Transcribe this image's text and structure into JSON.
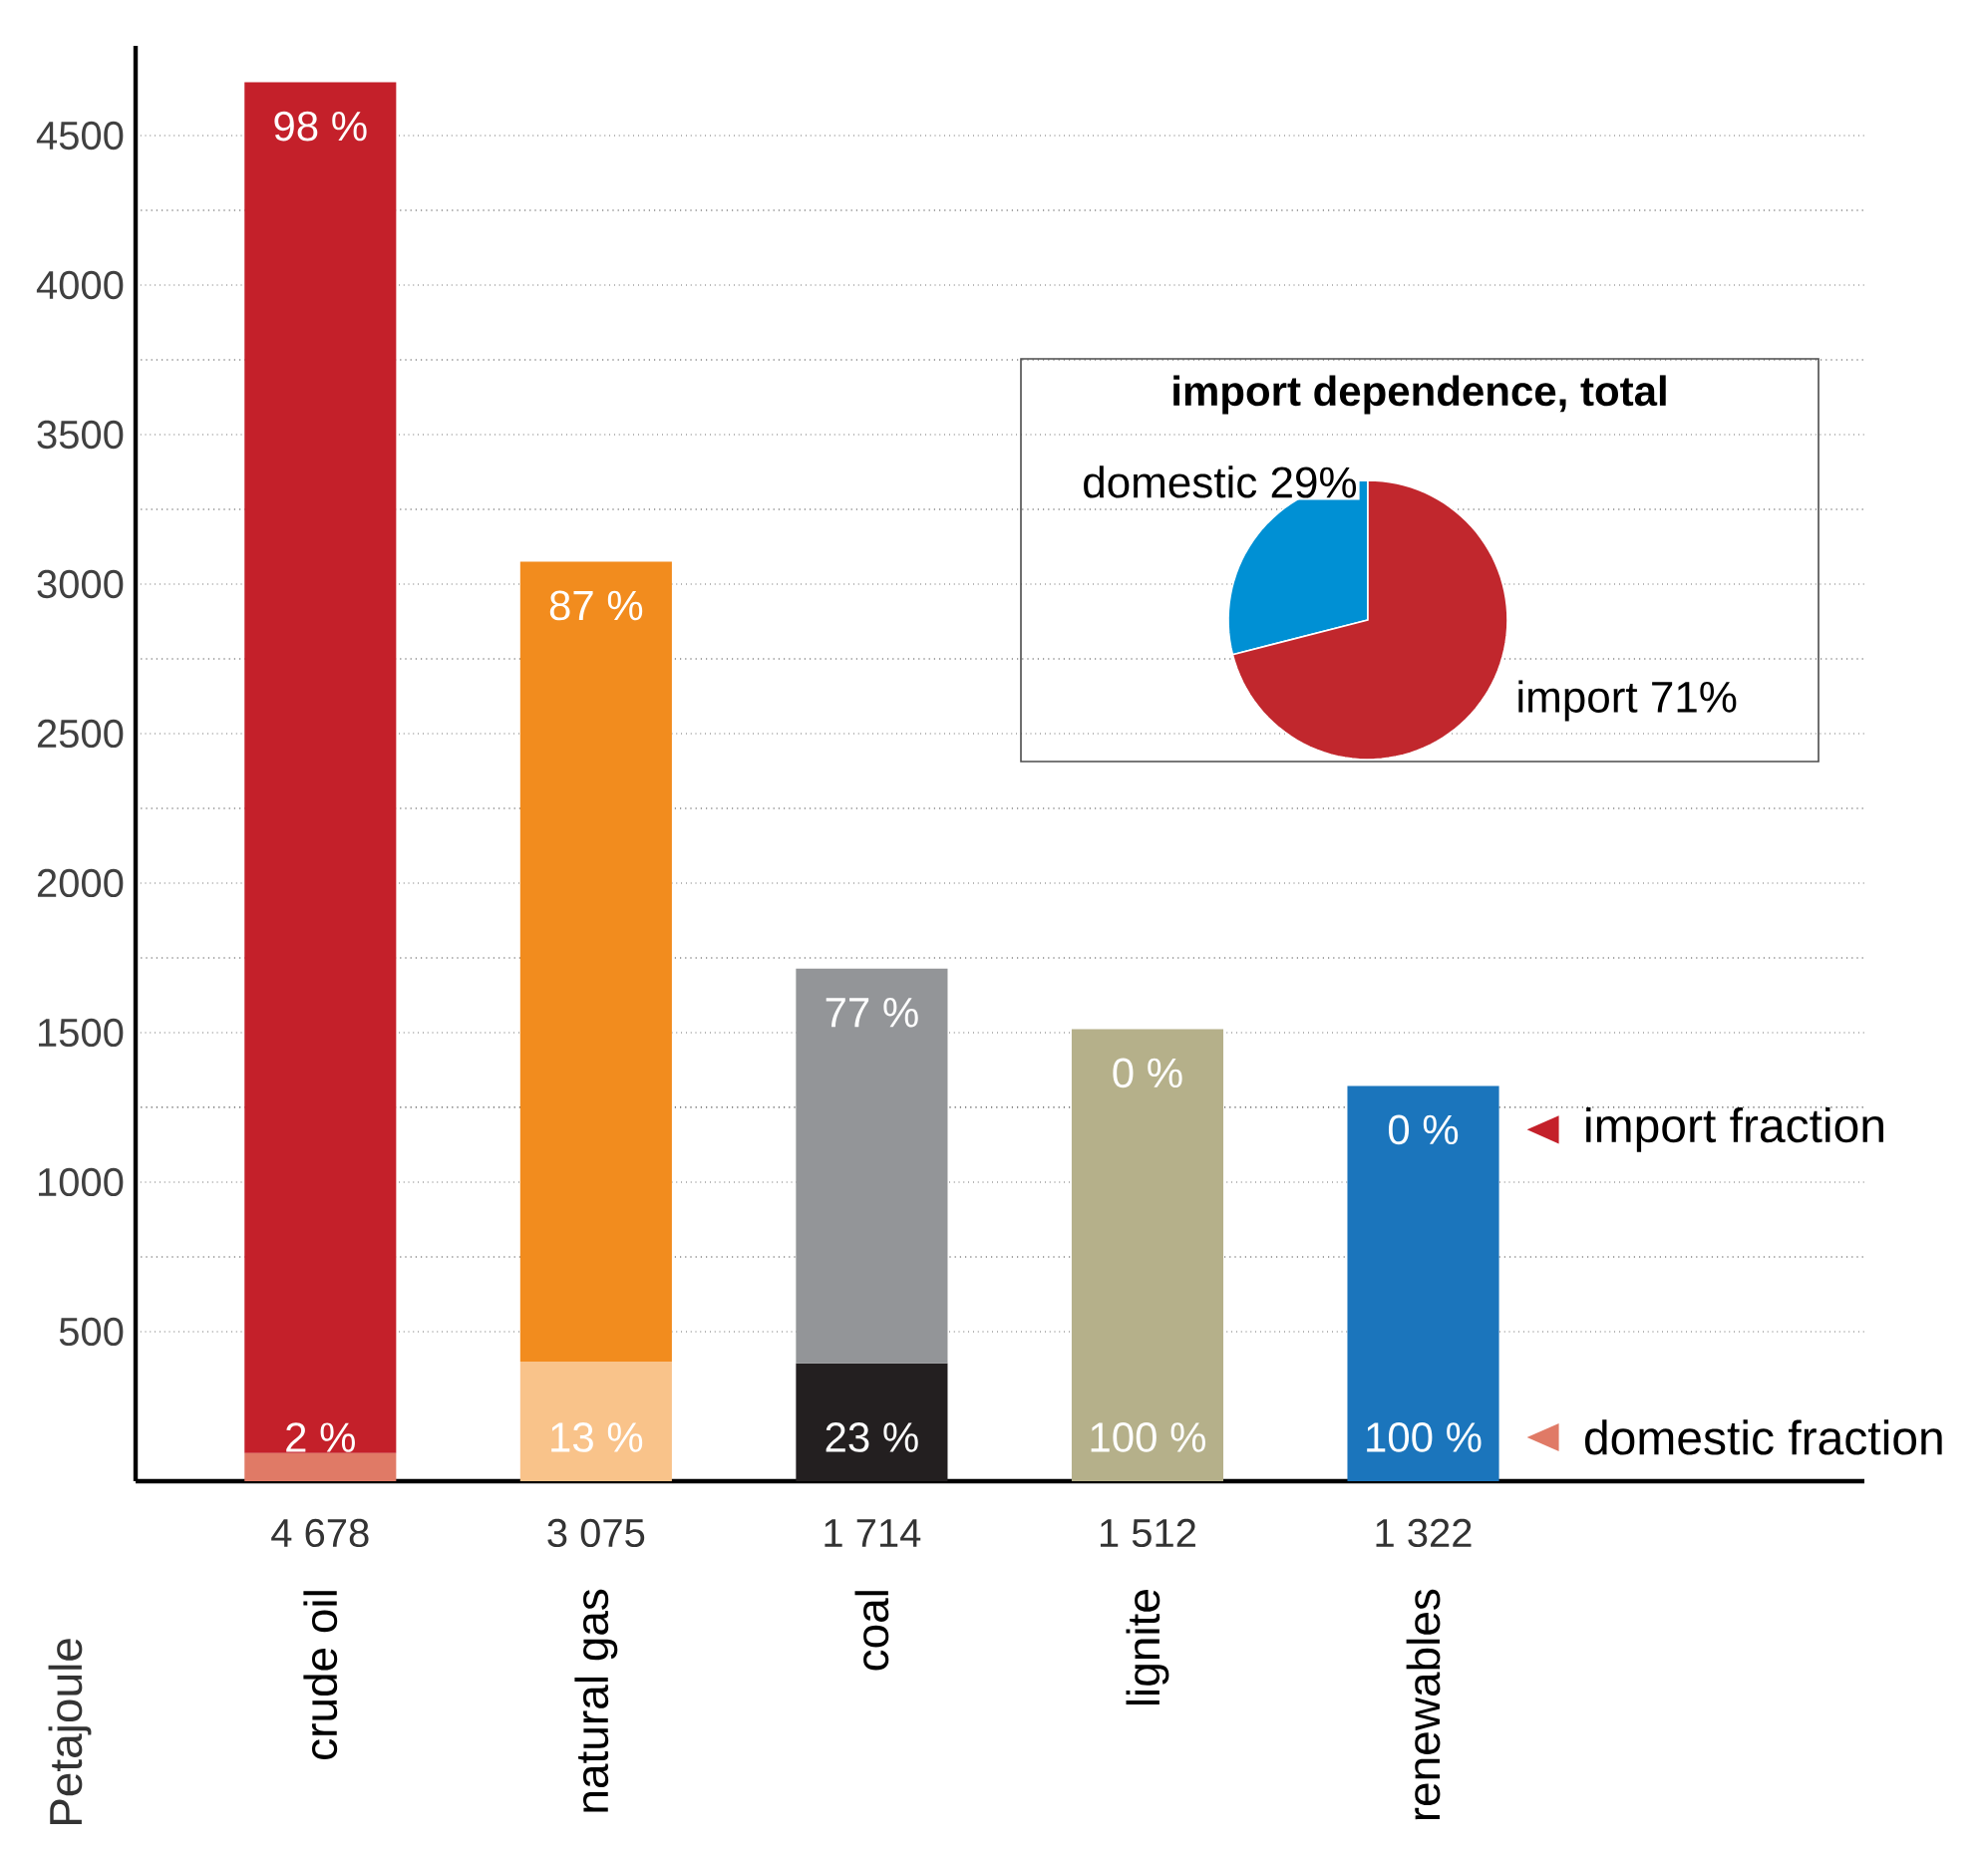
{
  "chart_data": [
    {
      "type": "bar",
      "stacked": true,
      "ylabel": "Petajoule",
      "categories": [
        "crude oil",
        "natural gas",
        "coal",
        "lignite",
        "renewables"
      ],
      "series": [
        {
          "name": "domestic fraction",
          "colors": [
            "#e07a66",
            "#f9c38a",
            "#231f20",
            "#b5b08a",
            "#1b75bc"
          ],
          "values": [
            94,
            400,
            394,
            1512,
            1322
          ]
        },
        {
          "name": "import fraction",
          "colors": [
            "#c4202a",
            "#f28c1e",
            "#939598",
            "#b5b08a",
            "#1b75bc"
          ],
          "values": [
            4584,
            2675,
            1320,
            0,
            0
          ]
        }
      ],
      "annotations": [
        {
          "text": "2 %",
          "x": "crude oil",
          "y": 0
        },
        {
          "text": "13 %",
          "x": "natural gas",
          "y": 0
        },
        {
          "text": "23 %",
          "x": "coal",
          "y": 0
        },
        {
          "text": "100 %",
          "x": "lignite",
          "y": 0
        },
        {
          "text": "100 %",
          "x": "renewables",
          "y": 0
        },
        {
          "text": "98 %",
          "x": "crude oil",
          "y": 4678
        },
        {
          "text": "87 %",
          "x": "natural gas",
          "y": 3075
        },
        {
          "text": "77 %",
          "x": "coal",
          "y": 1714
        },
        {
          "text": "0 %",
          "x": "lignite",
          "y": 1512
        },
        {
          "text": "0 %",
          "x": "renewables",
          "y": 1322
        }
      ],
      "totals": [
        "4 678",
        "3 075",
        "1 714",
        "1 512",
        "1 322"
      ],
      "ylim": [
        0,
        4800
      ],
      "yticks": [
        500,
        1000,
        1500,
        2000,
        2500,
        3000,
        3500,
        4000,
        4500
      ],
      "grid": "y",
      "legend": "right"
    },
    {
      "type": "pie",
      "title": "import dependence, total",
      "categories": [
        "domestic",
        "import"
      ],
      "values": [
        29,
        71
      ],
      "colors": [
        "#0090d4",
        "#c1272d"
      ],
      "value_labels": [
        "29%",
        "71%"
      ]
    }
  ]
}
